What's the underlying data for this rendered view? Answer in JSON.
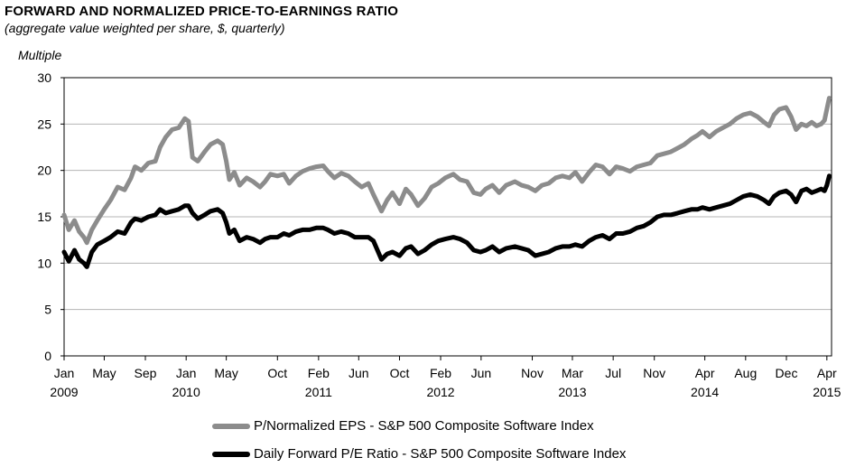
{
  "chart_data": {
    "type": "line",
    "title": "FORWARD AND NORMALIZED PRICE-TO-EARNINGS RATIO",
    "subtitle": "(aggregate value weighted per share, $, quarterly)",
    "ylabel": "Multiple",
    "ylim": [
      0,
      30
    ],
    "yticks": [
      "0",
      "5",
      "10",
      "15",
      "20",
      "25",
      "30"
    ],
    "xlim": [
      "2009-01-01",
      "2015-04-15"
    ],
    "xticks": [
      {
        "date": "2009-01-01",
        "line1": "Jan",
        "line2": "2009"
      },
      {
        "date": "2009-05-01",
        "line1": "May",
        "line2": ""
      },
      {
        "date": "2009-09-01",
        "line1": "Sep",
        "line2": ""
      },
      {
        "date": "2010-01-01",
        "line1": "Jan",
        "line2": "2010"
      },
      {
        "date": "2010-05-01",
        "line1": "May",
        "line2": ""
      },
      {
        "date": "2010-10-01",
        "line1": "Oct",
        "line2": ""
      },
      {
        "date": "2011-02-01",
        "line1": "Feb",
        "line2": "2011"
      },
      {
        "date": "2011-06-01",
        "line1": "Jun",
        "line2": ""
      },
      {
        "date": "2011-10-01",
        "line1": "Oct",
        "line2": ""
      },
      {
        "date": "2012-02-01",
        "line1": "Feb",
        "line2": "2012"
      },
      {
        "date": "2012-06-01",
        "line1": "Jun",
        "line2": ""
      },
      {
        "date": "2012-11-01",
        "line1": "Nov",
        "line2": ""
      },
      {
        "date": "2013-03-01",
        "line1": "Mar",
        "line2": "2013"
      },
      {
        "date": "2013-07-01",
        "line1": "Jul",
        "line2": ""
      },
      {
        "date": "2013-11-01",
        "line1": "Nov",
        "line2": ""
      },
      {
        "date": "2014-04-01",
        "line1": "Apr",
        "line2": "2014"
      },
      {
        "date": "2014-08-01",
        "line1": "Aug",
        "line2": ""
      },
      {
        "date": "2014-12-01",
        "line1": "Dec",
        "line2": ""
      },
      {
        "date": "2015-04-01",
        "line1": "Apr",
        "line2": "2015"
      }
    ],
    "grid": true,
    "legend_position": "bottom",
    "series": [
      {
        "name": "P/Normalized EPS - S&P 500 Composite Software Index",
        "color": "#8c8c8c",
        "points": [
          [
            "2009-01-01",
            15.2
          ],
          [
            "2009-01-15",
            13.6
          ],
          [
            "2009-02-01",
            14.6
          ],
          [
            "2009-02-15",
            13.4
          ],
          [
            "2009-03-01",
            12.8
          ],
          [
            "2009-03-10",
            12.2
          ],
          [
            "2009-03-25",
            13.6
          ],
          [
            "2009-04-10",
            14.6
          ],
          [
            "2009-05-01",
            15.8
          ],
          [
            "2009-05-20",
            16.8
          ],
          [
            "2009-06-10",
            18.2
          ],
          [
            "2009-07-01",
            17.9
          ],
          [
            "2009-07-20",
            19.2
          ],
          [
            "2009-08-01",
            20.4
          ],
          [
            "2009-08-20",
            20.0
          ],
          [
            "2009-09-10",
            20.8
          ],
          [
            "2009-10-01",
            21.0
          ],
          [
            "2009-10-15",
            22.5
          ],
          [
            "2009-11-01",
            23.6
          ],
          [
            "2009-11-20",
            24.4
          ],
          [
            "2009-12-10",
            24.6
          ],
          [
            "2009-12-28",
            25.6
          ],
          [
            "2010-01-08",
            25.3
          ],
          [
            "2010-01-20",
            21.4
          ],
          [
            "2010-02-05",
            21.0
          ],
          [
            "2010-02-25",
            22.0
          ],
          [
            "2010-03-15",
            22.8
          ],
          [
            "2010-04-05",
            23.2
          ],
          [
            "2010-04-20",
            22.8
          ],
          [
            "2010-05-01",
            21.0
          ],
          [
            "2010-05-10",
            19.0
          ],
          [
            "2010-05-25",
            19.8
          ],
          [
            "2010-06-10",
            18.4
          ],
          [
            "2010-07-01",
            19.2
          ],
          [
            "2010-07-20",
            18.8
          ],
          [
            "2010-08-10",
            18.2
          ],
          [
            "2010-08-25",
            18.8
          ],
          [
            "2010-09-10",
            19.6
          ],
          [
            "2010-10-01",
            19.4
          ],
          [
            "2010-10-20",
            19.6
          ],
          [
            "2010-11-05",
            18.6
          ],
          [
            "2010-11-25",
            19.4
          ],
          [
            "2010-12-15",
            19.9
          ],
          [
            "2011-01-05",
            20.2
          ],
          [
            "2011-01-25",
            20.4
          ],
          [
            "2011-02-15",
            20.5
          ],
          [
            "2011-03-01",
            19.9
          ],
          [
            "2011-03-20",
            19.2
          ],
          [
            "2011-04-10",
            19.7
          ],
          [
            "2011-05-01",
            19.4
          ],
          [
            "2011-05-20",
            18.8
          ],
          [
            "2011-06-10",
            18.2
          ],
          [
            "2011-06-30",
            18.6
          ],
          [
            "2011-07-15",
            17.4
          ],
          [
            "2011-08-08",
            15.6
          ],
          [
            "2011-08-25",
            16.8
          ],
          [
            "2011-09-10",
            17.6
          ],
          [
            "2011-10-01",
            16.4
          ],
          [
            "2011-10-20",
            18.0
          ],
          [
            "2011-11-05",
            17.4
          ],
          [
            "2011-11-25",
            16.2
          ],
          [
            "2011-12-15",
            17.0
          ],
          [
            "2012-01-05",
            18.2
          ],
          [
            "2012-01-25",
            18.6
          ],
          [
            "2012-02-15",
            19.2
          ],
          [
            "2012-03-10",
            19.6
          ],
          [
            "2012-03-30",
            19.0
          ],
          [
            "2012-04-20",
            18.8
          ],
          [
            "2012-05-10",
            17.6
          ],
          [
            "2012-05-30",
            17.4
          ],
          [
            "2012-06-15",
            18.0
          ],
          [
            "2012-07-05",
            18.4
          ],
          [
            "2012-07-25",
            17.6
          ],
          [
            "2012-08-15",
            18.4
          ],
          [
            "2012-09-10",
            18.8
          ],
          [
            "2012-09-30",
            18.4
          ],
          [
            "2012-10-20",
            18.2
          ],
          [
            "2012-11-10",
            17.8
          ],
          [
            "2012-11-30",
            18.4
          ],
          [
            "2012-12-20",
            18.6
          ],
          [
            "2013-01-10",
            19.2
          ],
          [
            "2013-01-30",
            19.4
          ],
          [
            "2013-02-20",
            19.2
          ],
          [
            "2013-03-10",
            19.8
          ],
          [
            "2013-03-30",
            18.8
          ],
          [
            "2013-04-20",
            19.8
          ],
          [
            "2013-05-10",
            20.6
          ],
          [
            "2013-05-30",
            20.4
          ],
          [
            "2013-06-20",
            19.6
          ],
          [
            "2013-07-10",
            20.4
          ],
          [
            "2013-07-30",
            20.2
          ],
          [
            "2013-08-20",
            19.9
          ],
          [
            "2013-09-10",
            20.4
          ],
          [
            "2013-09-30",
            20.6
          ],
          [
            "2013-10-20",
            20.8
          ],
          [
            "2013-11-10",
            21.6
          ],
          [
            "2013-11-30",
            21.8
          ],
          [
            "2013-12-20",
            22.0
          ],
          [
            "2014-01-10",
            22.4
          ],
          [
            "2014-01-30",
            22.8
          ],
          [
            "2014-02-20",
            23.4
          ],
          [
            "2014-03-10",
            23.8
          ],
          [
            "2014-03-25",
            24.2
          ],
          [
            "2014-04-15",
            23.6
          ],
          [
            "2014-05-05",
            24.2
          ],
          [
            "2014-05-25",
            24.6
          ],
          [
            "2014-06-15",
            25.0
          ],
          [
            "2014-07-05",
            25.6
          ],
          [
            "2014-07-25",
            26.0
          ],
          [
            "2014-08-15",
            26.2
          ],
          [
            "2014-09-05",
            25.8
          ],
          [
            "2014-09-25",
            25.2
          ],
          [
            "2014-10-10",
            24.8
          ],
          [
            "2014-10-25",
            26.0
          ],
          [
            "2014-11-10",
            26.6
          ],
          [
            "2014-11-30",
            26.8
          ],
          [
            "2014-12-15",
            25.8
          ],
          [
            "2014-12-30",
            24.4
          ],
          [
            "2015-01-15",
            25.0
          ],
          [
            "2015-01-30",
            24.8
          ],
          [
            "2015-02-15",
            25.2
          ],
          [
            "2015-03-01",
            24.8
          ],
          [
            "2015-03-15",
            25.0
          ],
          [
            "2015-03-25",
            25.4
          ],
          [
            "2015-04-01",
            26.6
          ],
          [
            "2015-04-08",
            27.8
          ]
        ]
      },
      {
        "name": "Daily Forward P/E Ratio - S&P 500 Composite Software Index",
        "color": "#000000",
        "points": [
          [
            "2009-01-01",
            11.2
          ],
          [
            "2009-01-15",
            10.2
          ],
          [
            "2009-02-01",
            11.4
          ],
          [
            "2009-02-15",
            10.4
          ],
          [
            "2009-03-01",
            10.0
          ],
          [
            "2009-03-10",
            9.6
          ],
          [
            "2009-03-25",
            11.2
          ],
          [
            "2009-04-10",
            12.0
          ],
          [
            "2009-05-01",
            12.4
          ],
          [
            "2009-05-20",
            12.8
          ],
          [
            "2009-06-10",
            13.4
          ],
          [
            "2009-07-01",
            13.2
          ],
          [
            "2009-07-20",
            14.4
          ],
          [
            "2009-08-01",
            14.8
          ],
          [
            "2009-08-20",
            14.6
          ],
          [
            "2009-09-10",
            15.0
          ],
          [
            "2009-10-01",
            15.2
          ],
          [
            "2009-10-15",
            15.8
          ],
          [
            "2009-11-01",
            15.4
          ],
          [
            "2009-11-20",
            15.6
          ],
          [
            "2009-12-10",
            15.8
          ],
          [
            "2009-12-28",
            16.2
          ],
          [
            "2010-01-08",
            16.2
          ],
          [
            "2010-01-20",
            15.4
          ],
          [
            "2010-02-05",
            14.8
          ],
          [
            "2010-02-25",
            15.2
          ],
          [
            "2010-03-15",
            15.6
          ],
          [
            "2010-04-05",
            15.8
          ],
          [
            "2010-04-20",
            15.4
          ],
          [
            "2010-05-01",
            14.4
          ],
          [
            "2010-05-10",
            13.2
          ],
          [
            "2010-05-25",
            13.6
          ],
          [
            "2010-06-10",
            12.4
          ],
          [
            "2010-07-01",
            12.8
          ],
          [
            "2010-07-20",
            12.6
          ],
          [
            "2010-08-10",
            12.2
          ],
          [
            "2010-08-25",
            12.6
          ],
          [
            "2010-09-10",
            12.8
          ],
          [
            "2010-10-01",
            12.8
          ],
          [
            "2010-10-20",
            13.2
          ],
          [
            "2010-11-05",
            13.0
          ],
          [
            "2010-11-25",
            13.4
          ],
          [
            "2010-12-15",
            13.6
          ],
          [
            "2011-01-05",
            13.6
          ],
          [
            "2011-01-25",
            13.8
          ],
          [
            "2011-02-15",
            13.8
          ],
          [
            "2011-03-01",
            13.6
          ],
          [
            "2011-03-20",
            13.2
          ],
          [
            "2011-04-10",
            13.4
          ],
          [
            "2011-05-01",
            13.2
          ],
          [
            "2011-05-20",
            12.8
          ],
          [
            "2011-06-10",
            12.8
          ],
          [
            "2011-06-30",
            12.8
          ],
          [
            "2011-07-15",
            12.4
          ],
          [
            "2011-08-08",
            10.4
          ],
          [
            "2011-08-25",
            11.0
          ],
          [
            "2011-09-10",
            11.2
          ],
          [
            "2011-10-01",
            10.8
          ],
          [
            "2011-10-20",
            11.6
          ],
          [
            "2011-11-05",
            11.8
          ],
          [
            "2011-11-25",
            11.0
          ],
          [
            "2011-12-15",
            11.4
          ],
          [
            "2012-01-05",
            12.0
          ],
          [
            "2012-01-25",
            12.4
          ],
          [
            "2012-02-15",
            12.6
          ],
          [
            "2012-03-10",
            12.8
          ],
          [
            "2012-03-30",
            12.6
          ],
          [
            "2012-04-20",
            12.2
          ],
          [
            "2012-05-10",
            11.4
          ],
          [
            "2012-05-30",
            11.2
          ],
          [
            "2012-06-15",
            11.4
          ],
          [
            "2012-07-05",
            11.8
          ],
          [
            "2012-07-25",
            11.2
          ],
          [
            "2012-08-15",
            11.6
          ],
          [
            "2012-09-10",
            11.8
          ],
          [
            "2012-09-30",
            11.6
          ],
          [
            "2012-10-20",
            11.4
          ],
          [
            "2012-11-10",
            10.8
          ],
          [
            "2012-11-30",
            11.0
          ],
          [
            "2012-12-20",
            11.2
          ],
          [
            "2013-01-10",
            11.6
          ],
          [
            "2013-01-30",
            11.8
          ],
          [
            "2013-02-20",
            11.8
          ],
          [
            "2013-03-10",
            12.0
          ],
          [
            "2013-03-30",
            11.8
          ],
          [
            "2013-04-20",
            12.4
          ],
          [
            "2013-05-10",
            12.8
          ],
          [
            "2013-05-30",
            13.0
          ],
          [
            "2013-06-20",
            12.6
          ],
          [
            "2013-07-10",
            13.2
          ],
          [
            "2013-07-30",
            13.2
          ],
          [
            "2013-08-20",
            13.4
          ],
          [
            "2013-09-10",
            13.8
          ],
          [
            "2013-09-30",
            14.0
          ],
          [
            "2013-10-20",
            14.4
          ],
          [
            "2013-11-10",
            15.0
          ],
          [
            "2013-11-30",
            15.2
          ],
          [
            "2013-12-20",
            15.2
          ],
          [
            "2014-01-10",
            15.4
          ],
          [
            "2014-01-30",
            15.6
          ],
          [
            "2014-02-20",
            15.8
          ],
          [
            "2014-03-10",
            15.8
          ],
          [
            "2014-03-25",
            16.0
          ],
          [
            "2014-04-15",
            15.8
          ],
          [
            "2014-05-05",
            16.0
          ],
          [
            "2014-05-25",
            16.2
          ],
          [
            "2014-06-15",
            16.4
          ],
          [
            "2014-07-05",
            16.8
          ],
          [
            "2014-07-25",
            17.2
          ],
          [
            "2014-08-15",
            17.4
          ],
          [
            "2014-09-05",
            17.2
          ],
          [
            "2014-09-25",
            16.8
          ],
          [
            "2014-10-10",
            16.4
          ],
          [
            "2014-10-25",
            17.2
          ],
          [
            "2014-11-10",
            17.6
          ],
          [
            "2014-11-30",
            17.8
          ],
          [
            "2014-12-15",
            17.4
          ],
          [
            "2014-12-30",
            16.6
          ],
          [
            "2015-01-15",
            17.8
          ],
          [
            "2015-01-30",
            18.0
          ],
          [
            "2015-02-15",
            17.6
          ],
          [
            "2015-03-01",
            17.8
          ],
          [
            "2015-03-15",
            18.0
          ],
          [
            "2015-03-25",
            17.8
          ],
          [
            "2015-04-01",
            18.4
          ],
          [
            "2015-04-08",
            19.4
          ]
        ]
      }
    ]
  }
}
